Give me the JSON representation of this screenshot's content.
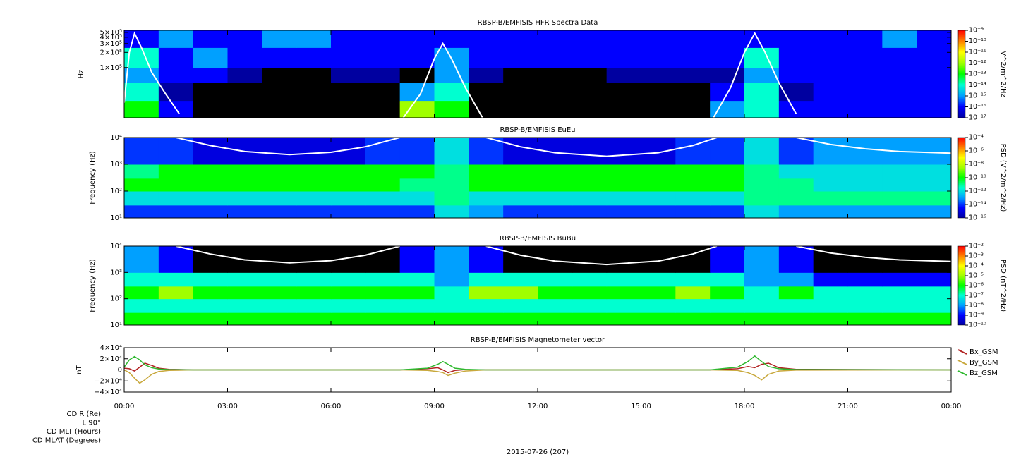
{
  "chart_data": [
    {
      "type": "spectrogram",
      "title": "RBSP-B/EMFISIS  HFR Spectra Data",
      "ylabel": "Hz",
      "log_y": true,
      "xlim": [
        0,
        24
      ],
      "ylim": [
        10000,
        550000
      ],
      "yticks": [
        {
          "value": 100000,
          "label": "1×10⁵"
        },
        {
          "value": 200000,
          "label": "2×10⁵"
        },
        {
          "value": 300000,
          "label": "3×10⁵"
        },
        {
          "value": 400000,
          "label": "4×10⁵"
        },
        {
          "value": 500000,
          "label": "5×10⁵"
        }
      ],
      "t_edges": [
        0,
        1,
        2,
        3,
        4,
        5,
        6,
        7,
        8,
        9,
        10,
        11,
        12,
        13,
        14,
        15,
        16,
        17,
        18,
        19,
        20,
        21,
        22,
        23,
        24
      ],
      "f_edges": [
        10000,
        22000,
        50000,
        100000,
        250000,
        550000
      ],
      "z": [
        [
          1e-13,
          1e-16,
          1e-18,
          1e-18,
          1e-18,
          1e-18,
          1e-18,
          1e-18,
          1e-12,
          1e-13,
          1e-18,
          1e-18,
          1e-18,
          1e-18,
          1e-18,
          1e-18,
          1e-18,
          1e-15,
          1e-14,
          1e-16,
          1e-16,
          1e-16,
          1e-16,
          1e-16
        ],
        [
          1e-14,
          1e-17,
          1e-18,
          1e-18,
          1e-18,
          1e-18,
          1e-18,
          1e-18,
          1e-15,
          1e-14,
          1e-18,
          1e-18,
          1e-18,
          1e-18,
          1e-18,
          1e-18,
          1e-18,
          1e-16,
          1e-14,
          1e-17,
          1e-16,
          1e-16,
          1e-16,
          1e-16
        ],
        [
          1e-15,
          1e-16,
          1e-16,
          1e-17,
          1e-18,
          1e-18,
          1e-17,
          1e-17,
          1e-18,
          1e-15,
          1e-17,
          1e-18,
          1e-18,
          1e-18,
          1e-17,
          1e-17,
          1e-17,
          1e-17,
          1e-15,
          1e-16,
          1e-16,
          1e-16,
          1e-16,
          1e-16
        ],
        [
          1e-14,
          1e-16,
          1e-15,
          1e-16,
          1e-16,
          1e-16,
          1e-16,
          1e-16,
          1e-16,
          1e-15,
          1e-16,
          1e-16,
          1e-16,
          1e-16,
          1e-16,
          1e-16,
          1e-16,
          1e-16,
          1e-14,
          1e-16,
          1e-16,
          1e-16,
          1e-16,
          1e-16
        ],
        [
          1e-16,
          1e-15,
          1e-16,
          1e-16,
          1e-15,
          1e-15,
          1e-16,
          1e-16,
          1e-16,
          1e-16,
          1e-16,
          1e-16,
          1e-16,
          1e-16,
          1e-16,
          1e-16,
          1e-16,
          1e-16,
          1e-16,
          1e-16,
          1e-16,
          1e-16,
          1e-15,
          1e-16
        ]
      ],
      "zlabel": "V^2/m^2/Hz",
      "zlim": [
        1e-17,
        1e-09
      ],
      "zticks": [
        {
          "value": 1e-09,
          "label": "10⁻⁹"
        },
        {
          "value": 1e-10,
          "label": "10⁻¹⁰"
        },
        {
          "value": 1e-11,
          "label": "10⁻¹¹"
        },
        {
          "value": 1e-12,
          "label": "10⁻¹²"
        },
        {
          "value": 1e-13,
          "label": "10⁻¹³"
        },
        {
          "value": 1e-14,
          "label": "10⁻¹⁴"
        },
        {
          "value": 1e-15,
          "label": "10⁻¹⁵"
        },
        {
          "value": 1e-16,
          "label": "10⁻¹⁶"
        },
        {
          "value": 1e-17,
          "label": "10⁻¹⁷"
        }
      ],
      "colormap": [
        "#0000a0",
        "#0000ff",
        "#00a0ff",
        "#00ffd0",
        "#00ff00",
        "#a0ff00",
        "#ffff00",
        "#ff8000",
        "#ff0000"
      ],
      "curve": {
        "color": "#ffffff",
        "x": [
          0,
          0.15,
          0.3,
          0.5,
          0.8,
          1.2,
          1.6,
          null,
          8.1,
          8.6,
          9.0,
          9.25,
          9.5,
          9.9,
          10.4,
          null,
          17.1,
          17.6,
          18.0,
          18.3,
          18.6,
          19.0,
          19.5
        ],
        "values": [
          20000,
          200000,
          480000,
          250000,
          80000,
          30000,
          12000,
          null,
          10000,
          30000,
          150000,
          300000,
          150000,
          40000,
          10000,
          null,
          10000,
          40000,
          200000,
          480000,
          200000,
          50000,
          12000
        ]
      }
    },
    {
      "type": "spectrogram",
      "title": "RBSP-B/EMFISIS  EuEu",
      "ylabel": "Frequency (Hz)",
      "log_y": true,
      "xlim": [
        0,
        24
      ],
      "ylim": [
        10,
        10000
      ],
      "yticks": [
        {
          "value": 10,
          "label": "10¹"
        },
        {
          "value": 100,
          "label": "10²"
        },
        {
          "value": 1000,
          "label": "10³"
        },
        {
          "value": 10000,
          "label": "10⁴"
        }
      ],
      "t_edges": [
        0,
        1,
        2,
        3,
        4,
        5,
        6,
        7,
        8,
        9,
        10,
        11,
        12,
        13,
        14,
        15,
        16,
        17,
        18,
        19,
        20,
        21,
        22,
        23,
        24
      ],
      "f_edges": [
        10,
        30,
        100,
        300,
        1000,
        10000
      ],
      "z": [
        [
          1e-14,
          1e-14,
          1e-14,
          1e-14,
          1e-14,
          1e-14,
          1e-14,
          1e-14,
          1e-14,
          1e-12,
          1e-13,
          1e-14,
          1e-14,
          1e-14,
          1e-14,
          1e-14,
          1e-14,
          1e-14,
          1e-12,
          1e-13,
          1e-13,
          1e-13,
          1e-13,
          1e-13
        ],
        [
          1e-12,
          1e-12,
          1e-12,
          1e-12,
          1e-12,
          1e-12,
          1e-12,
          1e-12,
          1e-12,
          1e-11,
          1e-12,
          1e-12,
          1e-12,
          1e-12,
          1e-12,
          1e-12,
          1e-12,
          1e-12,
          1e-11,
          1e-11,
          1e-11,
          1e-11,
          1e-11,
          1e-11
        ],
        [
          1e-10,
          1e-10,
          1e-10,
          1e-10,
          1e-10,
          1e-10,
          1e-10,
          1e-10,
          1e-11,
          1e-11,
          1e-10,
          1e-10,
          1e-10,
          1e-10,
          1e-10,
          1e-10,
          1e-10,
          1e-10,
          1e-11,
          1e-11,
          1e-12,
          1e-12,
          1e-12,
          1e-12
        ],
        [
          1e-11,
          1e-10,
          1e-10,
          1e-10,
          1e-10,
          1e-10,
          1e-10,
          1e-10,
          1e-10,
          1e-11,
          1e-10,
          1e-10,
          1e-10,
          1e-10,
          1e-10,
          1e-10,
          1e-10,
          1e-10,
          1e-11,
          1e-12,
          1e-12,
          1e-12,
          1e-12,
          1e-12
        ],
        [
          1e-14,
          1e-14,
          1e-15,
          1e-15,
          1e-15,
          1e-15,
          1e-15,
          1e-14,
          1e-14,
          1e-12,
          1e-14,
          1e-15,
          1e-15,
          1e-15,
          1e-15,
          1e-15,
          1e-14,
          1e-14,
          1e-12,
          1e-14,
          1e-13,
          1e-13,
          1e-13,
          1e-13
        ]
      ],
      "zlabel": "PSD (V^2/m^2/Hz)",
      "zlim": [
        1e-16,
        0.0001
      ],
      "zticks": [
        {
          "value": 0.0001,
          "label": "10⁻⁴"
        },
        {
          "value": 1e-06,
          "label": "10⁻⁶"
        },
        {
          "value": 1e-08,
          "label": "10⁻⁸"
        },
        {
          "value": 1e-10,
          "label": "10⁻¹⁰"
        },
        {
          "value": 1e-12,
          "label": "10⁻¹²"
        },
        {
          "value": 1e-14,
          "label": "10⁻¹⁴"
        },
        {
          "value": 1e-16,
          "label": "10⁻¹⁶"
        }
      ],
      "colormap": [
        "#0000a0",
        "#0000ff",
        "#00a0ff",
        "#00ffd0",
        "#00ff00",
        "#a0ff00",
        "#ffff00",
        "#ff8000",
        "#ff0000"
      ],
      "curve": {
        "color": "#ffffff",
        "x": [
          1.5,
          2.5,
          3.5,
          4.8,
          6,
          7,
          8,
          null,
          10.5,
          11.5,
          12.5,
          14,
          15.5,
          16.5,
          17.2,
          null,
          19.5,
          20.5,
          21.5,
          22.5,
          24
        ],
        "values": [
          10000,
          5000,
          3000,
          2300,
          2800,
          4500,
          10000,
          null,
          10000,
          4500,
          2700,
          2000,
          2700,
          5000,
          10000,
          null,
          10000,
          5500,
          3800,
          3000,
          2600
        ]
      }
    },
    {
      "type": "spectrogram",
      "title": "RBSP-B/EMFISIS  BuBu",
      "ylabel": "Frequency (Hz)",
      "log_y": true,
      "xlim": [
        0,
        24
      ],
      "ylim": [
        10,
        10000
      ],
      "yticks": [
        {
          "value": 10,
          "label": "10¹"
        },
        {
          "value": 100,
          "label": "10²"
        },
        {
          "value": 1000,
          "label": "10³"
        },
        {
          "value": 10000,
          "label": "10⁴"
        }
      ],
      "t_edges": [
        0,
        1,
        2,
        3,
        4,
        5,
        6,
        7,
        8,
        9,
        10,
        11,
        12,
        13,
        14,
        15,
        16,
        17,
        18,
        19,
        20,
        21,
        22,
        23,
        24
      ],
      "f_edges": [
        10,
        30,
        100,
        300,
        1000,
        10000
      ],
      "z": [
        [
          1e-06,
          1e-06,
          1e-06,
          1e-06,
          1e-06,
          1e-06,
          1e-06,
          1e-06,
          1e-06,
          1e-06,
          1e-06,
          1e-06,
          1e-06,
          1e-06,
          1e-06,
          1e-06,
          1e-06,
          1e-06,
          1e-06,
          1e-06,
          1e-06,
          1e-06,
          1e-06,
          1e-06
        ],
        [
          1e-07,
          1e-07,
          1e-07,
          1e-07,
          1e-07,
          1e-07,
          1e-07,
          1e-07,
          1e-07,
          1e-07,
          1e-07,
          1e-07,
          1e-07,
          1e-07,
          1e-07,
          1e-07,
          1e-07,
          1e-07,
          1e-07,
          1e-07,
          1e-07,
          1e-07,
          1e-07,
          1e-07
        ],
        [
          1e-06,
          1e-05,
          1e-06,
          1e-06,
          1e-06,
          1e-06,
          1e-06,
          1e-06,
          1e-06,
          1e-07,
          1e-05,
          1e-05,
          1e-06,
          1e-06,
          1e-06,
          1e-06,
          1e-05,
          1e-06,
          1e-07,
          1e-06,
          1e-07,
          1e-07,
          1e-07,
          1e-07
        ],
        [
          1e-07,
          1e-07,
          1e-07,
          1e-07,
          1e-07,
          1e-07,
          1e-07,
          1e-07,
          1e-07,
          1e-08,
          1e-07,
          1e-07,
          1e-07,
          1e-07,
          1e-07,
          1e-07,
          1e-07,
          1e-07,
          1e-08,
          1e-08,
          1e-09,
          1e-09,
          1e-09,
          1e-09
        ],
        [
          1e-08,
          1e-09,
          1e-11,
          1e-11,
          1e-11,
          1e-11,
          1e-11,
          1e-11,
          1e-09,
          1e-08,
          1e-09,
          1e-11,
          1e-11,
          1e-11,
          1e-11,
          1e-11,
          1e-11,
          1e-09,
          1e-08,
          1e-09,
          1e-11,
          1e-11,
          1e-11,
          1e-11
        ]
      ],
      "zlabel": "PSD (nT^2/Hz)",
      "zlim": [
        1e-10,
        0.01
      ],
      "zticks": [
        {
          "value": 0.01,
          "label": "10⁻²"
        },
        {
          "value": 0.001,
          "label": "10⁻³"
        },
        {
          "value": 0.0001,
          "label": "10⁻⁴"
        },
        {
          "value": 1e-05,
          "label": "10⁻⁵"
        },
        {
          "value": 1e-06,
          "label": "10⁻⁶"
        },
        {
          "value": 1e-07,
          "label": "10⁻⁷"
        },
        {
          "value": 1e-08,
          "label": "10⁻⁸"
        },
        {
          "value": 1e-09,
          "label": "10⁻⁹"
        },
        {
          "value": 1e-10,
          "label": "10⁻¹⁰"
        }
      ],
      "colormap": [
        "#0000a0",
        "#0000ff",
        "#00a0ff",
        "#00ffd0",
        "#00ff00",
        "#a0ff00",
        "#ffff00",
        "#ff8000",
        "#ff0000"
      ],
      "curve": {
        "color": "#ffffff",
        "x": [
          1.5,
          2.5,
          3.5,
          4.8,
          6,
          7,
          8,
          null,
          10.5,
          11.5,
          12.5,
          14,
          15.5,
          16.5,
          17.2,
          null,
          19.5,
          20.5,
          21.5,
          22.5,
          24
        ],
        "values": [
          10000,
          5000,
          3000,
          2300,
          2800,
          4500,
          10000,
          null,
          10000,
          4500,
          2700,
          2000,
          2700,
          5000,
          10000,
          null,
          10000,
          5500,
          3800,
          3000,
          2600
        ]
      }
    },
    {
      "type": "line",
      "title": "RBSP-B/EMFISIS  Magnetometer vector",
      "ylabel": "nT",
      "xlim": [
        0,
        24
      ],
      "ylim": [
        -40000,
        40000
      ],
      "yticks": [
        {
          "value": -40000,
          "label": "−4×10⁴"
        },
        {
          "value": -20000,
          "label": "−2×10⁴"
        },
        0,
        {
          "value": 20000,
          "label": "2×10⁴"
        },
        {
          "value": 40000,
          "label": "4×10⁴"
        }
      ],
      "xticks": [
        {
          "value": 0,
          "label": "00:00"
        },
        {
          "value": 3,
          "label": "03:00"
        },
        {
          "value": 6,
          "label": "06:00"
        },
        {
          "value": 9,
          "label": "09:00"
        },
        {
          "value": 12,
          "label": "12:00"
        },
        {
          "value": 15,
          "label": "15:00"
        },
        {
          "value": 18,
          "label": "18:00"
        },
        {
          "value": 21,
          "label": "21:00"
        },
        {
          "value": 24,
          "label": "00:00"
        }
      ],
      "legend": "right",
      "x": [
        0,
        0.15,
        0.3,
        0.45,
        0.6,
        0.8,
        1.0,
        1.3,
        2,
        8,
        8.8,
        9.1,
        9.25,
        9.4,
        9.6,
        9.9,
        10.5,
        17,
        17.8,
        18.1,
        18.3,
        18.5,
        18.7,
        19,
        19.5,
        24
      ],
      "series": [
        {
          "name": "Bx_GSM",
          "color": "#b22222",
          "values": [
            3000,
            2000,
            -2000,
            5000,
            12000,
            8000,
            3000,
            1000,
            0,
            0,
            2000,
            4000,
            0,
            -5000,
            -1000,
            500,
            0,
            0,
            2000,
            6000,
            4000,
            10000,
            12000,
            4000,
            1000,
            0
          ]
        },
        {
          "name": "By_GSM",
          "color": "#c8a83c",
          "values": [
            0,
            -5000,
            -15000,
            -24000,
            -18000,
            -8000,
            -3000,
            -1000,
            0,
            0,
            -1000,
            -3000,
            -5000,
            -10000,
            -6000,
            -2000,
            0,
            0,
            -1000,
            -5000,
            -10000,
            -18000,
            -8000,
            -2000,
            -500,
            0
          ]
        },
        {
          "name": "Bz_GSM",
          "color": "#2eb82e",
          "values": [
            5000,
            18000,
            24000,
            18000,
            9000,
            4000,
            1500,
            500,
            0,
            0,
            3000,
            10000,
            15000,
            10000,
            3000,
            1000,
            0,
            0,
            5000,
            15000,
            25000,
            15000,
            6000,
            2000,
            500,
            0
          ]
        }
      ]
    }
  ],
  "footer": {
    "row_labels": [
      "CD R (Re)",
      "L 90°",
      "CD MLT (Hours)",
      "CD MLAT (Degrees)"
    ],
    "date": "2015-07-26 (207)"
  }
}
